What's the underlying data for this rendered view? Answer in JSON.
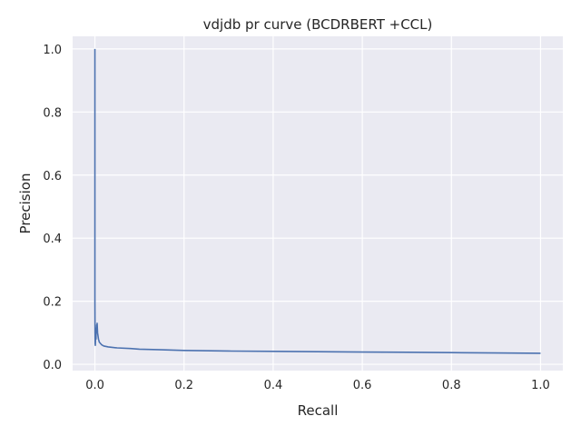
{
  "chart_data": {
    "type": "line",
    "title": "vdjdb pr curve (BCDRBERT +CCL)",
    "xlabel": "Recall",
    "ylabel": "Precision",
    "xlim": [
      -0.05,
      1.05
    ],
    "ylim": [
      -0.02,
      1.04
    ],
    "xticks": [
      0.0,
      0.2,
      0.4,
      0.6,
      0.8,
      1.0
    ],
    "yticks": [
      0.0,
      0.2,
      0.4,
      0.6,
      0.8,
      1.0
    ],
    "xtick_labels": [
      "0.0",
      "0.2",
      "0.4",
      "0.6",
      "0.8",
      "1.0"
    ],
    "ytick_labels": [
      "0.0",
      "0.2",
      "0.4",
      "0.6",
      "0.8",
      "1.0"
    ],
    "grid": true,
    "background": "#eaeaf2",
    "grid_color": "#ffffff",
    "series": [
      {
        "color": "#4c72b0",
        "x": [
          0.0,
          0.0,
          0.0,
          0.0003,
          0.0006,
          0.001,
          0.0015,
          0.002,
          0.0025,
          0.003,
          0.0035,
          0.004,
          0.0045,
          0.005,
          0.006,
          0.008,
          0.01,
          0.015,
          0.02,
          0.03,
          0.05,
          0.08,
          0.1,
          0.15,
          0.2,
          0.3,
          0.4,
          0.5,
          0.6,
          0.7,
          0.8,
          0.9,
          1.0
        ],
        "y": [
          1.0,
          0.5,
          0.2,
          0.1,
          0.065,
          0.06,
          0.09,
          0.1,
          0.08,
          0.115,
          0.105,
          0.125,
          0.12,
          0.13,
          0.1,
          0.08,
          0.07,
          0.062,
          0.058,
          0.055,
          0.052,
          0.05,
          0.048,
          0.046,
          0.044,
          0.042,
          0.041,
          0.04,
          0.039,
          0.038,
          0.037,
          0.036,
          0.035
        ]
      }
    ]
  }
}
